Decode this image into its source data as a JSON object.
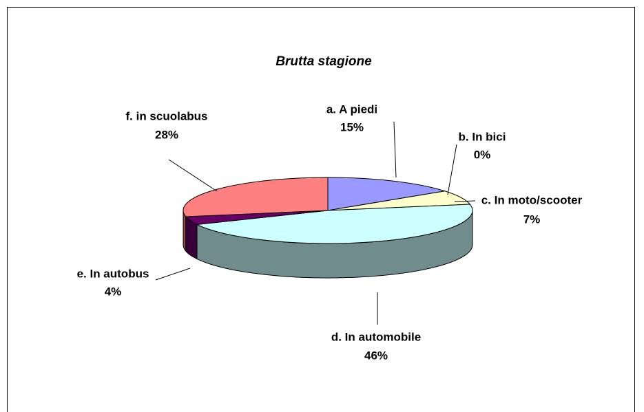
{
  "chart_data": {
    "type": "pie3d",
    "title": "Brutta stagione",
    "categories": [
      "a. A piedi",
      "b. In bici",
      "c. In moto/scooter",
      "d. In automobile",
      "e. In autobus",
      "f. in scuolabus"
    ],
    "values": [
      15,
      0,
      7,
      46,
      4,
      28
    ],
    "value_labels": [
      "15%",
      "0%",
      "7%",
      "46%",
      "4%",
      "28%"
    ],
    "colors": [
      "#9999ff",
      "#993366",
      "#ffffcc",
      "#ccffff",
      "#660066",
      "#ff8080"
    ]
  }
}
